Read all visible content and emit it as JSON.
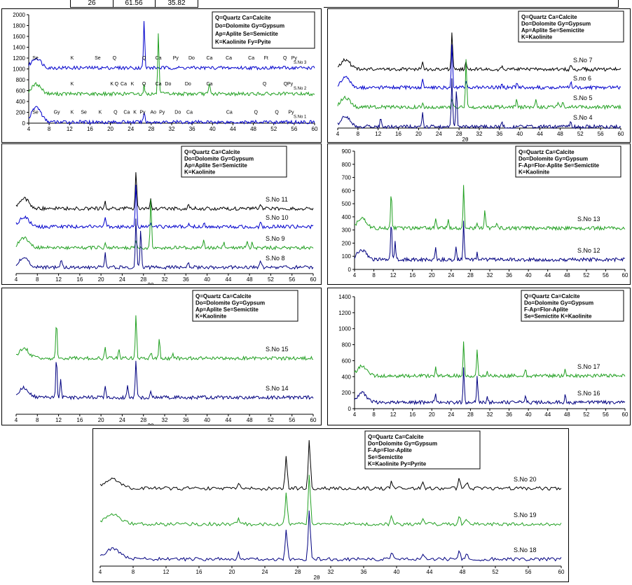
{
  "table_fragment": {
    "cells": [
      "26",
      "61.56",
      "35.82"
    ]
  },
  "colors": {
    "blue": "#0000cc",
    "green": "#22a022",
    "black": "#000000",
    "darkblue": "#000080"
  },
  "chart_data": [
    {
      "type": "line",
      "id": "p1",
      "title": "",
      "xticks": [
        4,
        8,
        12,
        16,
        20,
        24,
        28,
        32,
        36,
        40,
        44,
        48,
        52,
        56,
        60
      ],
      "yticks": [
        0,
        200,
        400,
        600,
        800,
        1000,
        1200,
        1400,
        1600,
        1800,
        2000
      ],
      "ylim": [
        0,
        2000
      ],
      "xlabel": "",
      "legend": [
        "Q=Quartz   Ca=Calcite",
        "Do=Dolomite Gy=Gypsum",
        "Ap=Aplite    Se=Semictite",
        "K=Kaolinite   Fy=Pyite"
      ],
      "series": [
        {
          "name": "S.No 3",
          "color": "#0000cc",
          "baseline": 1020,
          "values": [
            [
              4,
              1030
            ],
            [
              6,
              1210
            ],
            [
              8,
              1060
            ],
            [
              12,
              1020
            ],
            [
              16,
              1040
            ],
            [
              20,
              1080
            ],
            [
              24,
              1050
            ],
            [
              26.6,
              1880
            ],
            [
              27,
              1040
            ],
            [
              30,
              1050
            ],
            [
              34,
              1030
            ],
            [
              40,
              1040
            ],
            [
              50,
              1030
            ],
            [
              60,
              1020
            ]
          ],
          "labels": [
            [
              "Se",
              5.3
            ],
            [
              "K",
              12.5
            ],
            [
              "Se",
              17.5
            ],
            [
              "Q",
              20.8
            ],
            [
              "Q",
              26.6
            ],
            [
              "Ca",
              29.4
            ],
            [
              "Py",
              32.8
            ],
            [
              "Do",
              35.9
            ],
            [
              "Ca",
              39.4
            ],
            [
              "Ca",
              43.2
            ],
            [
              "Ca",
              47.6
            ],
            [
              "Ft",
              50.5
            ],
            [
              "Q",
              54.2
            ],
            [
              "Py",
              56
            ]
          ]
        },
        {
          "name": "S.No 2",
          "color": "#22a022",
          "baseline": 540,
          "values": [
            [
              4,
              540
            ],
            [
              10,
              560
            ],
            [
              20,
              570
            ],
            [
              26.6,
              700
            ],
            [
              29.4,
              1700
            ],
            [
              30,
              560
            ],
            [
              39.4,
              740
            ],
            [
              40,
              560
            ],
            [
              50,
              640
            ],
            [
              60,
              530
            ]
          ],
          "labels": [
            [
              "K",
              12.5
            ],
            [
              "K",
              20.3
            ],
            [
              "Q",
              21.2
            ],
            [
              "Ca",
              22.6
            ],
            [
              "K",
              24.3
            ],
            [
              "Q",
              26.6
            ],
            [
              "Ca",
              29.4
            ],
            [
              "Do",
              31.3
            ],
            [
              "Do",
              35.2
            ],
            [
              "Ca",
              39.4
            ],
            [
              "Q",
              50.2
            ],
            [
              "Q",
              54.3
            ],
            [
              "Py",
              55.2
            ]
          ]
        },
        {
          "name": "S.No 1",
          "color": "#0000cc",
          "baseline": 20,
          "values": [
            [
              4,
              40
            ],
            [
              5.5,
              300
            ],
            [
              7,
              100
            ],
            [
              10,
              40
            ],
            [
              20,
              60
            ],
            [
              26.6,
              230
            ],
            [
              29.4,
              130
            ],
            [
              40,
              50
            ],
            [
              60,
              20
            ]
          ],
          "labels": [
            [
              "Se",
              5.3
            ],
            [
              "Gy",
              9.5
            ],
            [
              "K",
              12.5
            ],
            [
              "Se",
              14.8
            ],
            [
              "K",
              18
            ],
            [
              "Q",
              21
            ],
            [
              "Ca",
              23.2
            ],
            [
              "K",
              24.8
            ],
            [
              "Py",
              26.3
            ],
            [
              "Ao",
              28.4
            ],
            [
              "Py",
              30.1
            ],
            [
              "Do",
              33.2
            ],
            [
              "Ca",
              35.5
            ],
            [
              "Ca",
              43.3
            ],
            [
              "Q",
              48.5
            ],
            [
              "Q",
              52.6
            ],
            [
              "Py",
              55.4
            ]
          ]
        }
      ]
    },
    {
      "type": "line",
      "id": "p2",
      "title": "",
      "xlabel": "2θ",
      "legend": [
        "Q=Quartz   Ca=Calcite",
        "Do=Dolomite Gy=Gypsum",
        "Ap=Aplite    Se=Semictite",
        "K=Kaolinite"
      ],
      "series": [
        {
          "name": "S.No 7",
          "color": "#000000"
        },
        {
          "name": "S.no 6",
          "color": "#0000cc"
        },
        {
          "name": "S.No 5",
          "color": "#22a022"
        },
        {
          "name": "S.No 4",
          "color": "#000080"
        }
      ]
    },
    {
      "type": "line",
      "id": "p3",
      "xticks": [
        4,
        8,
        12,
        16,
        20,
        24,
        28,
        32,
        36,
        40,
        44,
        48,
        52,
        56,
        60
      ],
      "xlabel": "2θ",
      "legend": [
        "Q=Quartz    Ca=Calcite",
        "Do=Dolomite Gy=Gypsum",
        "Ap=Aplite    Se=Semictite",
        "K=Kaolinite"
      ],
      "series": [
        {
          "name": "S.No 11",
          "color": "#000000"
        },
        {
          "name": "S.No 10",
          "color": "#0000cc"
        },
        {
          "name": "S.No 9",
          "color": "#22a022"
        },
        {
          "name": "S.No 8",
          "color": "#000080"
        }
      ]
    },
    {
      "type": "line",
      "id": "p4",
      "yticks": [
        0,
        100,
        200,
        300,
        400,
        500,
        600,
        700,
        800,
        900
      ],
      "ylim": [
        0,
        900
      ],
      "xticks": [
        4,
        8,
        12,
        16,
        20,
        24,
        28,
        32,
        36,
        40,
        44,
        48,
        52,
        56,
        60
      ],
      "legend": [
        "Q=Quartz    Ca=Calcite",
        "Do=Dolomite Gy=Gypsum",
        "F-Ap=Flor-Aplite Se=Semictite",
        "K=Kaolinite"
      ],
      "series": [
        {
          "name": "S.No 13",
          "color": "#22a022"
        },
        {
          "name": "S.No 12",
          "color": "#000080"
        }
      ]
    },
    {
      "type": "line",
      "id": "p5",
      "xticks": [
        4,
        8,
        12,
        16,
        20,
        24,
        28,
        32,
        36,
        40,
        44,
        48,
        52,
        56,
        60
      ],
      "xlabel": "2θ",
      "legend": [
        "Q=Quartz    Ca=Calcite",
        "Do=Dolomite Gy=Gypsum",
        "Ap=Aplite    Se=Semictite",
        "K=Kaolinite"
      ],
      "series": [
        {
          "name": "S.No 15",
          "color": "#22a022"
        },
        {
          "name": "S.No 14",
          "color": "#000080"
        }
      ]
    },
    {
      "type": "line",
      "id": "p6",
      "yticks": [
        0,
        200,
        400,
        600,
        800,
        1000,
        1200,
        1400
      ],
      "ylim": [
        0,
        1400
      ],
      "xticks": [
        4,
        8,
        12,
        16,
        20,
        24,
        28,
        32,
        36,
        40,
        44,
        48,
        52,
        56,
        60
      ],
      "legend": [
        "Q=Quartz        Ca=Calcite",
        "Do=Dolomite    Gy=Gypsum",
        "F-Ap=Flor-Aplite",
        "Se=Semictite     K=Kaolinite"
      ],
      "series": [
        {
          "name": "S.No 17",
          "color": "#22a022"
        },
        {
          "name": "S.No 16",
          "color": "#000080"
        }
      ]
    },
    {
      "type": "line",
      "id": "p7",
      "xticks": [
        4,
        8,
        12,
        16,
        20,
        24,
        28,
        32,
        36,
        40,
        44,
        48,
        52,
        56,
        60
      ],
      "xlabel": "2θ",
      "legend": [
        "Q=Quartz    Ca=Calcite",
        "Do=Dolomite  Gy=Gypsum",
        "F-Ap=Flor-Aplite",
        "Se=Semictite",
        "K=Kaolinite      Py=Pyrite"
      ],
      "series": [
        {
          "name": "S.No 20",
          "color": "#000000"
        },
        {
          "name": "S.No 19",
          "color": "#22a022"
        },
        {
          "name": "S.No 18",
          "color": "#000080"
        }
      ]
    }
  ]
}
